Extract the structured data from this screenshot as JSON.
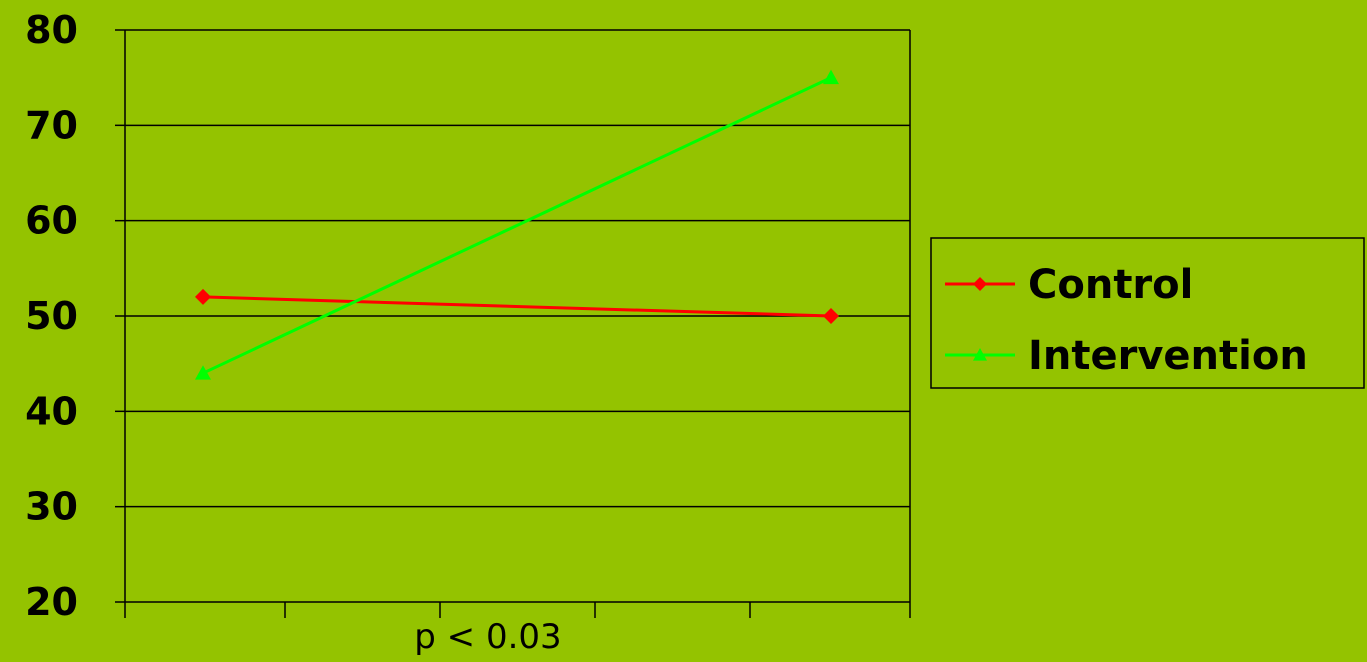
{
  "chart_data": {
    "type": "line",
    "categories": [
      "",
      ""
    ],
    "series": [
      {
        "name": "Control",
        "values": [
          52,
          50
        ],
        "color": "#ff0000",
        "marker": "diamond"
      },
      {
        "name": "Intervention",
        "values": [
          44,
          75
        ],
        "color": "#00ff00",
        "marker": "triangle"
      }
    ],
    "y_ticks": [
      20,
      30,
      40,
      50,
      60,
      70,
      80
    ],
    "ylim": [
      20,
      80
    ],
    "grid": "horizontal",
    "legend_position": "right",
    "annotation": "p < 0.03",
    "background_color": "#94c300"
  }
}
